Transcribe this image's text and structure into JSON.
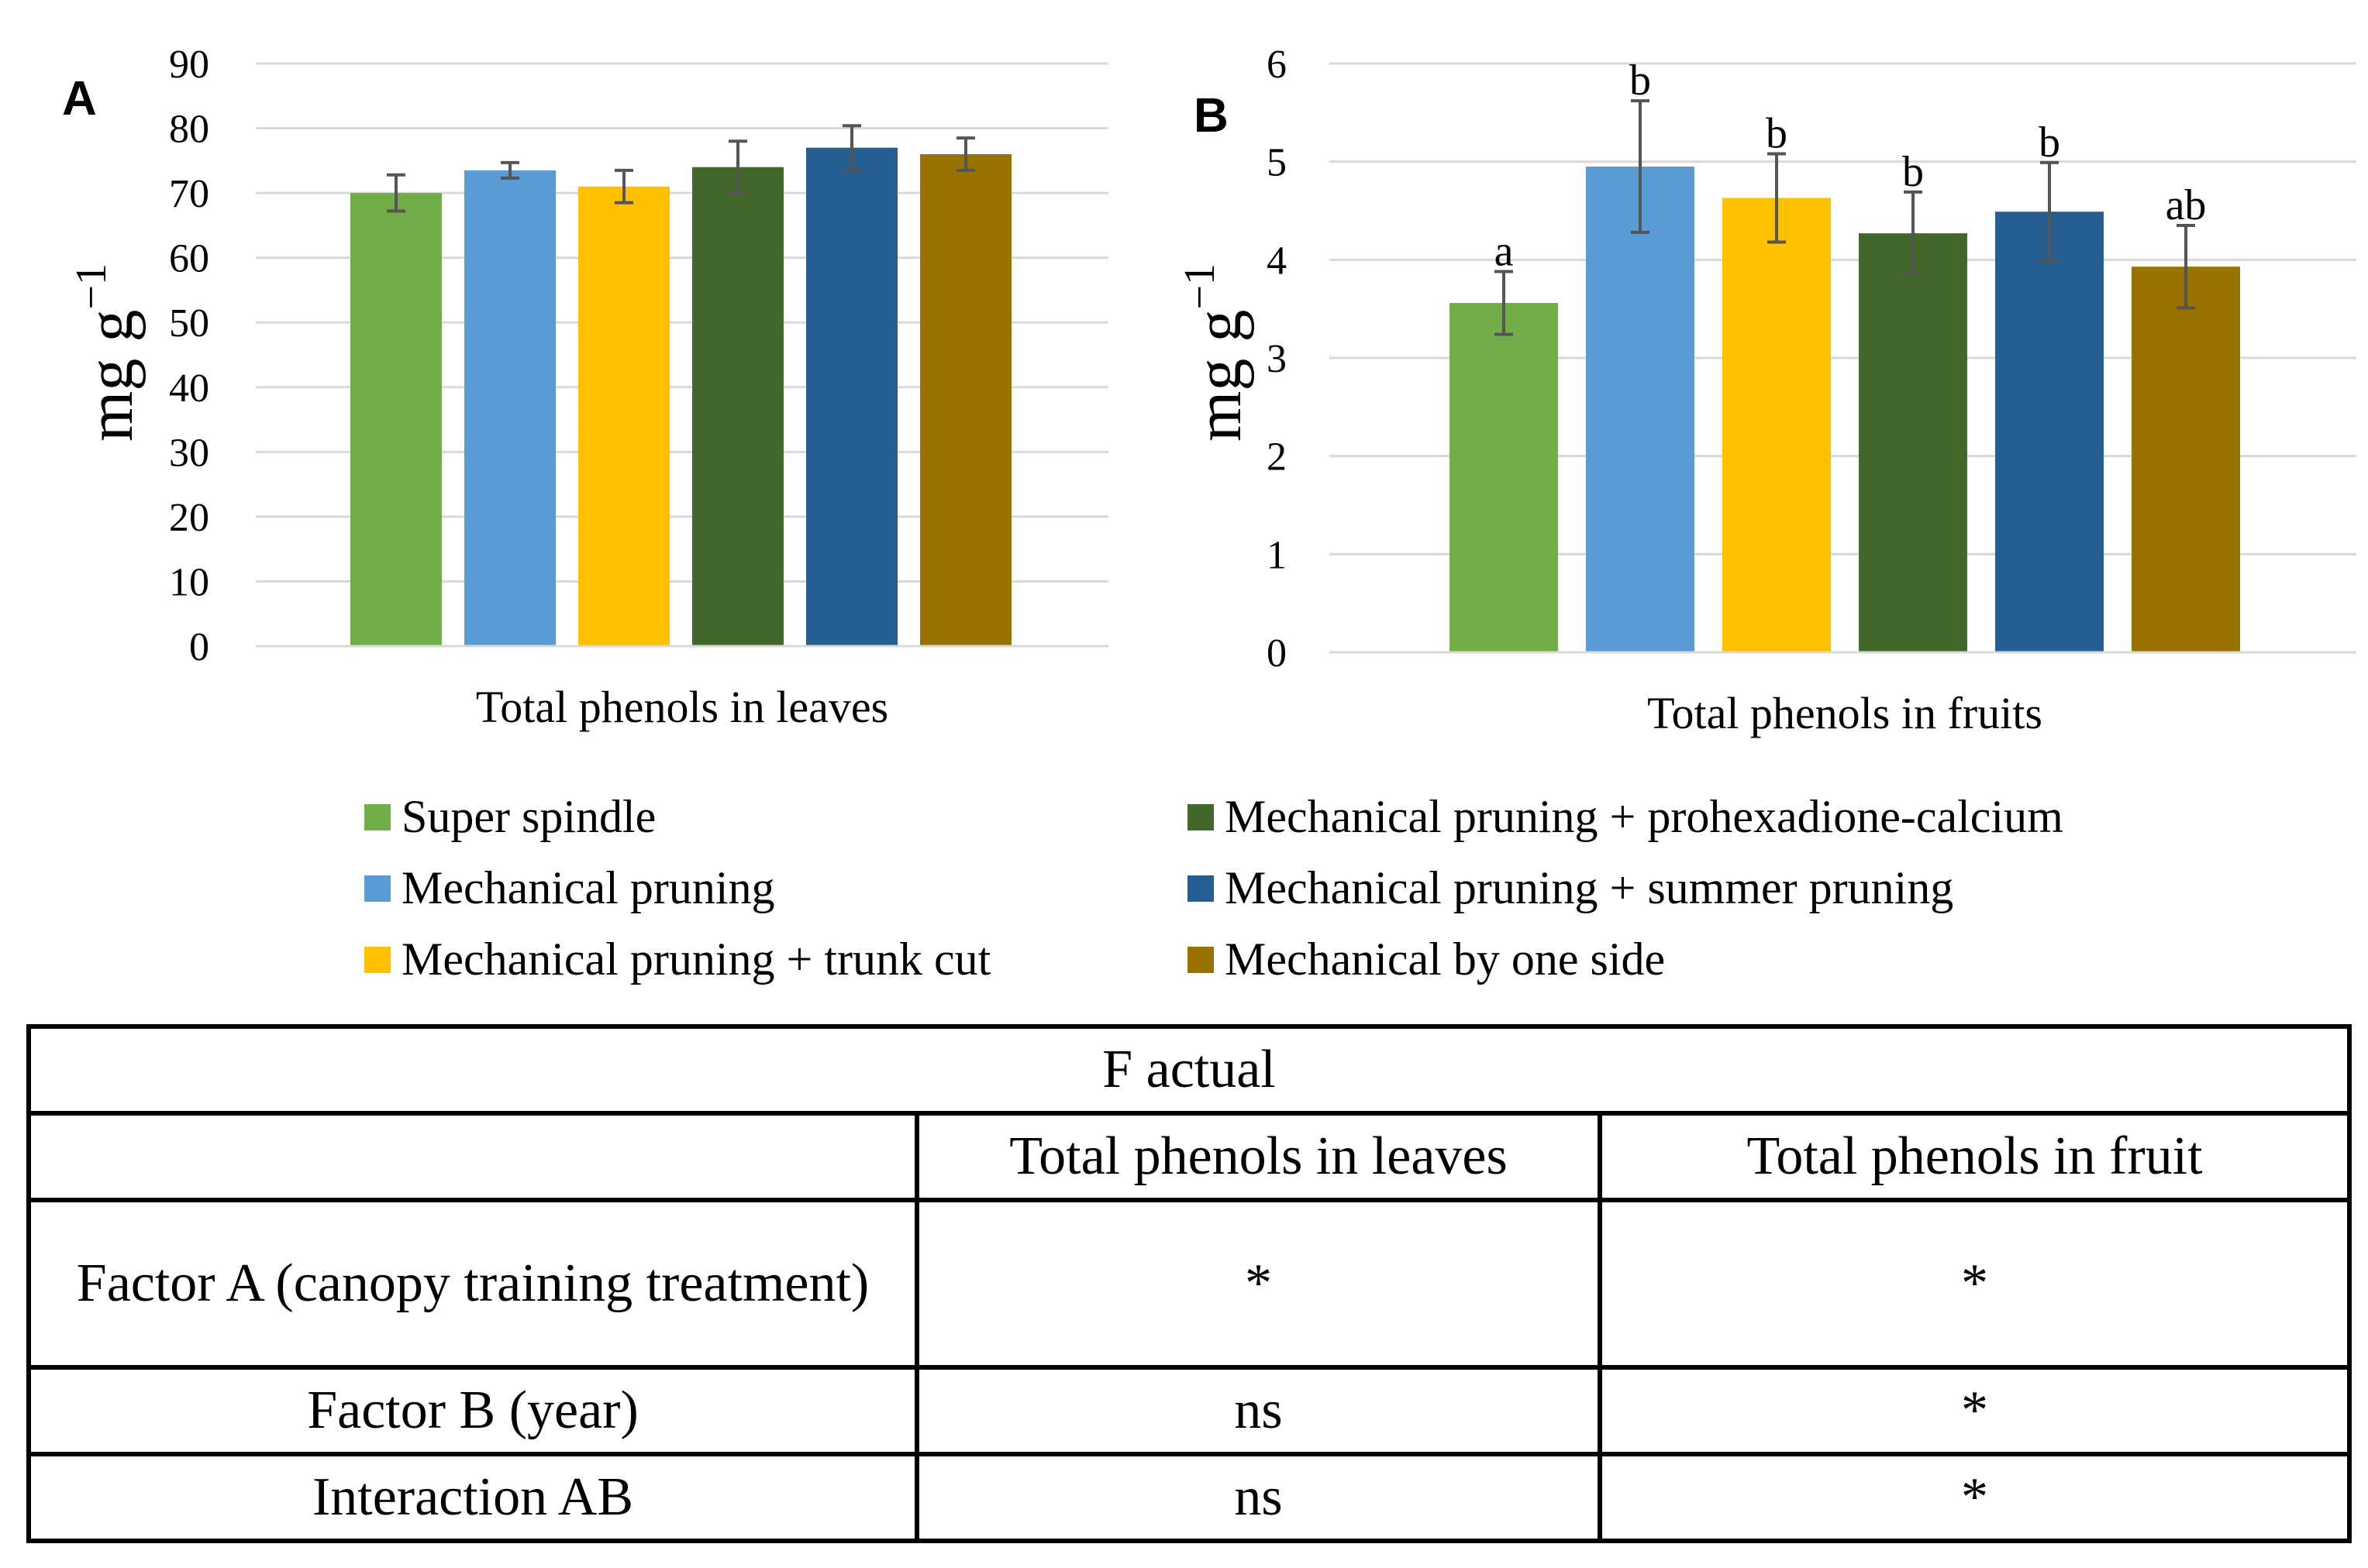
{
  "chart_data": [
    {
      "type": "bar",
      "panel": "A",
      "xlabel": "Total phenols in leaves",
      "ylabel": "mg g",
      "ylabel_sup": "−1",
      "ylim": [
        0,
        90
      ],
      "yticks": [
        0,
        10,
        20,
        30,
        40,
        50,
        60,
        70,
        80,
        90
      ],
      "grid": true,
      "series": [
        {
          "name": "Super spindle",
          "value": 70.0,
          "err": 2.8,
          "color": "#70AD47"
        },
        {
          "name": "Mechanical pruning",
          "value": 73.5,
          "err": 1.2,
          "color": "#5B9BD5"
        },
        {
          "name": "Mechanical pruning + trunk cut",
          "value": 71.0,
          "err": 2.5,
          "color": "#FFC000"
        },
        {
          "name": "Mechanical pruning + prohexadione-calcium",
          "value": 74.0,
          "err": 4.0,
          "color": "#43682B"
        },
        {
          "name": "Mechanical pruning + summer pruning",
          "value": 77.0,
          "err": 3.4,
          "color": "#255E91"
        },
        {
          "name": "Mechanical by one side",
          "value": 76.0,
          "err": 2.5,
          "color": "#997300"
        }
      ]
    },
    {
      "type": "bar",
      "panel": "B",
      "xlabel": "Total phenols in fruits",
      "ylabel": "mg g",
      "ylabel_sup": "−1",
      "ylim": [
        0,
        6
      ],
      "yticks": [
        0,
        1,
        2,
        3,
        4,
        5,
        6
      ],
      "grid": true,
      "series": [
        {
          "name": "Super spindle",
          "value": 3.56,
          "err": 0.32,
          "color": "#70AD47",
          "letter": "a"
        },
        {
          "name": "Mechanical pruning",
          "value": 4.95,
          "err": 0.67,
          "color": "#5B9BD5",
          "letter": "b"
        },
        {
          "name": "Mechanical pruning + trunk cut",
          "value": 4.63,
          "err": 0.45,
          "color": "#FFC000",
          "letter": "b"
        },
        {
          "name": "Mechanical pruning + prohexadione-calcium",
          "value": 4.27,
          "err": 0.42,
          "color": "#43682B",
          "letter": "b"
        },
        {
          "name": "Mechanical pruning + summer pruning",
          "value": 4.49,
          "err": 0.5,
          "color": "#255E91",
          "letter": "b"
        },
        {
          "name": "Mechanical by one side",
          "value": 3.93,
          "err": 0.42,
          "color": "#997300",
          "letter": "ab"
        }
      ]
    }
  ],
  "legend": [
    {
      "label": "Super spindle",
      "color": "#70AD47"
    },
    {
      "label": "Mechanical pruning",
      "color": "#5B9BD5"
    },
    {
      "label": "Mechanical pruning + trunk cut",
      "color": "#FFC000"
    },
    {
      "label": "Mechanical pruning + prohexadione-calcium",
      "color": "#43682B"
    },
    {
      "label": "Mechanical pruning + summer pruning",
      "color": "#255E91"
    },
    {
      "label": "Mechanical by one side",
      "color": "#997300"
    }
  ],
  "table": {
    "title": "F actual",
    "col1": "Total phenols in leaves",
    "col2": "Total phenols in fruit",
    "rows": [
      {
        "label": "Factor A (canopy training treatment)",
        "v1": "*",
        "v2": "*"
      },
      {
        "label": "Factor B (year)",
        "v1": "ns",
        "v2": "*"
      },
      {
        "label": "Interaction AB",
        "v1": "ns",
        "v2": "*"
      }
    ]
  }
}
